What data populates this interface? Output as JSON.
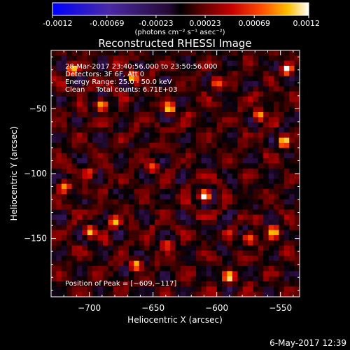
{
  "colorbar": {
    "tick_labels": [
      "-0.0012",
      "-0.00069",
      "-0.00023",
      "0.00023",
      "0.00069",
      "0.0012"
    ],
    "units_label": "(photons cm⁻² s⁻¹ asec⁻²)"
  },
  "chart_data": {
    "type": "heatmap",
    "title": "Reconstructed RHESSI Image",
    "xlabel": "Heliocentric X (arcsec)",
    "ylabel": "Heliocentric Y (arcsec)",
    "xlim": [
      -730,
      -535
    ],
    "ylim": [
      -195,
      -5
    ],
    "x_ticks": [
      -700,
      -650,
      -600,
      -550
    ],
    "y_ticks": [
      -50,
      -100,
      -150
    ],
    "x_tick_labels": [
      "−700",
      "−650",
      "−600",
      "−550"
    ],
    "y_tick_labels": [
      "−50",
      "−100",
      "−150"
    ],
    "colorbar_range": [
      -0.0012,
      0.0012
    ],
    "annotations": [
      "28-Mar-2017 23:40:56.000 to 23:50:56.000",
      "Detectors: 3F 6F, Att 0",
      "Energy Range: 25.0 - 50.0 keV",
      "Clean     Total counts: 6.71E+03"
    ],
    "peak_label": "Position of Peak = [−609,−117]",
    "peak": [
      -609,
      -117
    ],
    "background_level": 0.0002,
    "sources": [
      {
        "x": -609,
        "y": -117,
        "value": 0.0012
      },
      {
        "x": -637,
        "y": -50,
        "value": 0.0009
      },
      {
        "x": -690,
        "y": -47,
        "value": 0.0009
      },
      {
        "x": -666,
        "y": -25,
        "value": 0.0008
      },
      {
        "x": -713,
        "y": -20,
        "value": 0.0008
      },
      {
        "x": -545,
        "y": -20,
        "value": 0.0009
      },
      {
        "x": -548,
        "y": -75,
        "value": 0.0009
      },
      {
        "x": -567,
        "y": -55,
        "value": 0.0008
      },
      {
        "x": -700,
        "y": -145,
        "value": 0.0008
      },
      {
        "x": -680,
        "y": -137,
        "value": 0.0008
      },
      {
        "x": -663,
        "y": -170,
        "value": 0.0007
      },
      {
        "x": -575,
        "y": -150,
        "value": 0.0008
      },
      {
        "x": -555,
        "y": -145,
        "value": 0.0008
      },
      {
        "x": -590,
        "y": -180,
        "value": 0.0007
      },
      {
        "x": -720,
        "y": -110,
        "value": 0.0007
      },
      {
        "x": -600,
        "y": -30,
        "value": 0.0006
      },
      {
        "x": -640,
        "y": -155,
        "value": 0.0006
      },
      {
        "x": -700,
        "y": -100,
        "value": 0.0006
      },
      {
        "x": -650,
        "y": -95,
        "value": 0.0006
      }
    ]
  },
  "footer": {
    "timestamp": "6-May-2017 12:39"
  }
}
